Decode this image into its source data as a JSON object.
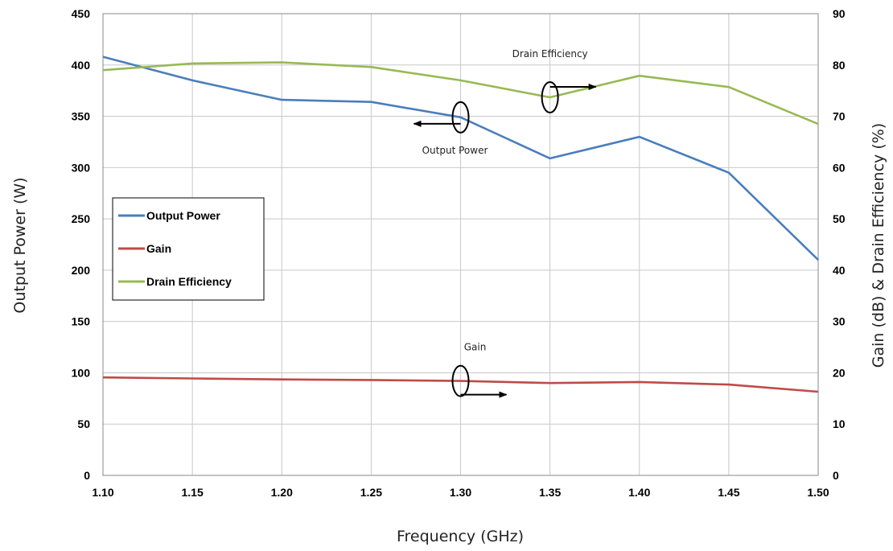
{
  "chart_data": {
    "type": "line",
    "title": "",
    "xlabel": "Frequency (GHz)",
    "ylabel": "Output Power (W)",
    "y2label": "Gain (dB) & Drain Efficiency (%)",
    "x": [
      1.1,
      1.15,
      1.2,
      1.25,
      1.3,
      1.35,
      1.4,
      1.45,
      1.5
    ],
    "x_tick_labels": [
      "1.10",
      "1.15",
      "1.20",
      "1.25",
      "1.30",
      "1.35",
      "1.40",
      "1.45",
      "1.50"
    ],
    "xlim": [
      1.1,
      1.5
    ],
    "ylim": [
      0,
      450
    ],
    "y_ticks": [
      0,
      50,
      100,
      150,
      200,
      250,
      300,
      350,
      400,
      450
    ],
    "y2lim": [
      0,
      90
    ],
    "y2_ticks": [
      0,
      10,
      20,
      30,
      40,
      50,
      60,
      70,
      80,
      90
    ],
    "grid": true,
    "legend_position": "left",
    "series": [
      {
        "name": "Output Power",
        "axis": "left",
        "color": "#4a7ebb",
        "values": [
          408,
          385,
          366,
          364,
          349,
          309,
          330,
          295,
          210
        ]
      },
      {
        "name": "Gain",
        "axis": "right",
        "color": "#be4b48",
        "values": [
          19.1,
          18.9,
          18.7,
          18.6,
          18.4,
          18.0,
          18.2,
          17.7,
          16.3
        ]
      },
      {
        "name": "Drain Efficiency",
        "axis": "right",
        "color": "#98b954",
        "values": [
          79.0,
          80.3,
          80.5,
          79.6,
          77.0,
          73.7,
          77.9,
          75.7,
          68.5
        ]
      }
    ],
    "annotations": [
      {
        "text": "Drain Efficiency",
        "series": "Drain Efficiency",
        "x": 1.35,
        "direction": "right"
      },
      {
        "text": "Output Power",
        "series": "Output Power",
        "x": 1.3,
        "direction": "left"
      },
      {
        "text": "Gain",
        "series": "Gain",
        "x": 1.3,
        "direction": "right"
      }
    ]
  }
}
